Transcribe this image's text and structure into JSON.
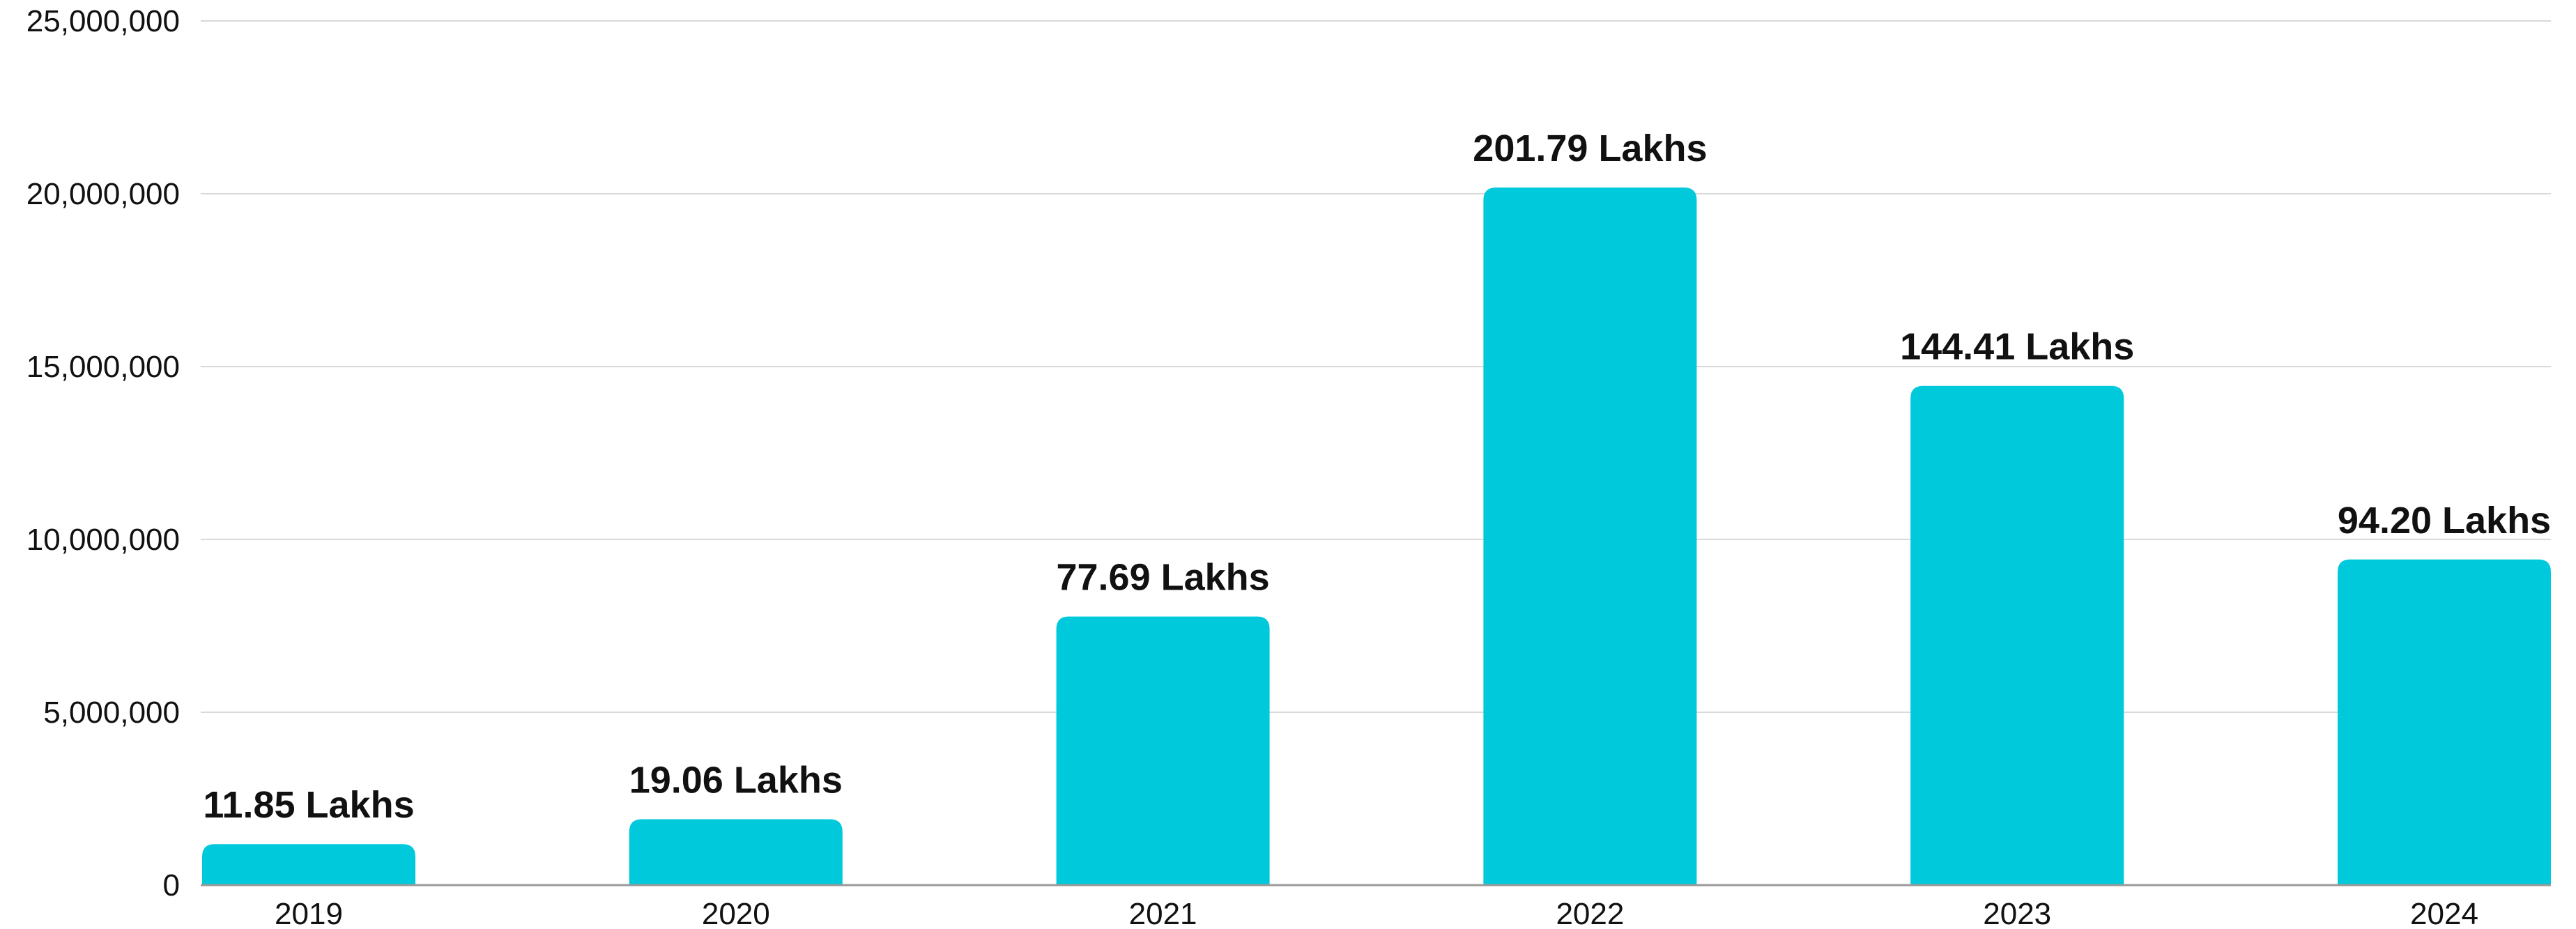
{
  "chart_data": {
    "type": "bar",
    "categories": [
      "2019",
      "2020",
      "2021",
      "2022",
      "2023",
      "2024"
    ],
    "values": [
      1185000,
      1906000,
      7769000,
      20179000,
      14441000,
      9420000
    ],
    "data_labels": [
      "11.85 Lakhs",
      "19.06 Lakhs",
      "77.69 Lakhs",
      "201.79 Lakhs",
      "144.41 Lakhs",
      "94.20 Lakhs"
    ],
    "y_ticks": [
      0,
      5000000,
      10000000,
      15000000,
      20000000,
      25000000
    ],
    "y_tick_labels": [
      "0",
      "5,000,000",
      "10,000,000",
      "15,000,000",
      "20,000,000",
      "25,000,000"
    ],
    "ylim": [
      0,
      25000000
    ],
    "grid": true,
    "legend": "none",
    "title": "",
    "xlabel": "",
    "ylabel": "",
    "bar_color": "#00C9DB"
  }
}
